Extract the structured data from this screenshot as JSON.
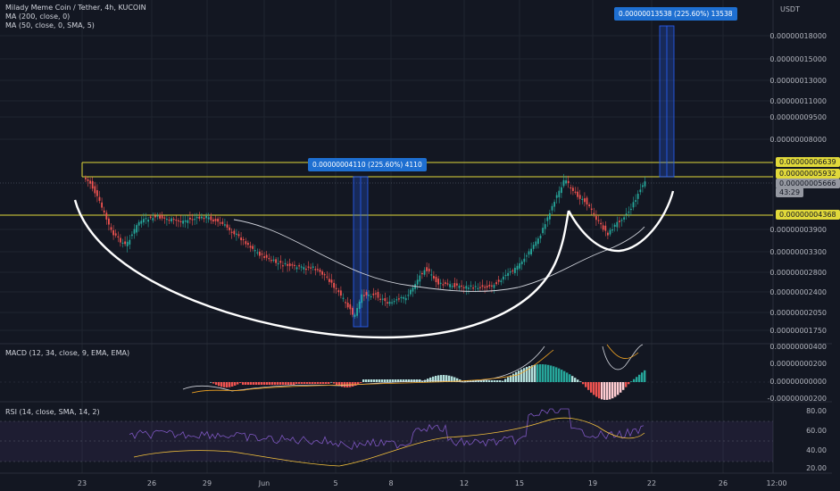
{
  "legend": {
    "symbol": "Milady Meme Coin / Tether, 4h, KUCOIN",
    "ma200": "MA (200, close, 0)",
    "ma50": "MA (50, close, 0, SMA, 5)",
    "macd": "MACD (12, 34, close, 9, EMA, EMA)",
    "rsi": "RSI (14, close, SMA, 14, 2)"
  },
  "price_axis": {
    "currency": "USDT",
    "ticks": [
      "0.00000018000",
      "0.00000015000",
      "0.00000013000",
      "0.00000011000",
      "0.00000009500",
      "0.00000008000",
      "0.00000003900",
      "0.00000003300",
      "0.00000002800",
      "0.00000002400",
      "0.00000002050",
      "0.00000001750"
    ]
  },
  "price_tags": {
    "top_line": "0.00000006639",
    "mid_line": "0.00000005932",
    "current": "0.00000005666",
    "countdown": "43:29",
    "support": "0.00000004368"
  },
  "macd_axis": {
    "ticks": [
      "0.00000000400",
      "0.00000000200",
      "0.00000000000",
      "-0.00000000200"
    ]
  },
  "rsi_axis": {
    "ticks": [
      "80.00",
      "60.00",
      "40.00",
      "20.00"
    ]
  },
  "measurements": {
    "first": "0.00000004110 (225.60%) 4110",
    "second": "0.00000013538 (225.60%) 13538"
  },
  "time_axis": {
    "labels": [
      "23",
      "26",
      "29",
      "Jun",
      "5",
      "8",
      "12",
      "15",
      "19",
      "22",
      "26",
      "12:00"
    ]
  },
  "colors": {
    "up": "#26a69a",
    "down": "#ef5350",
    "yellow": "#e0d83a",
    "blue": "#2962ff"
  }
}
